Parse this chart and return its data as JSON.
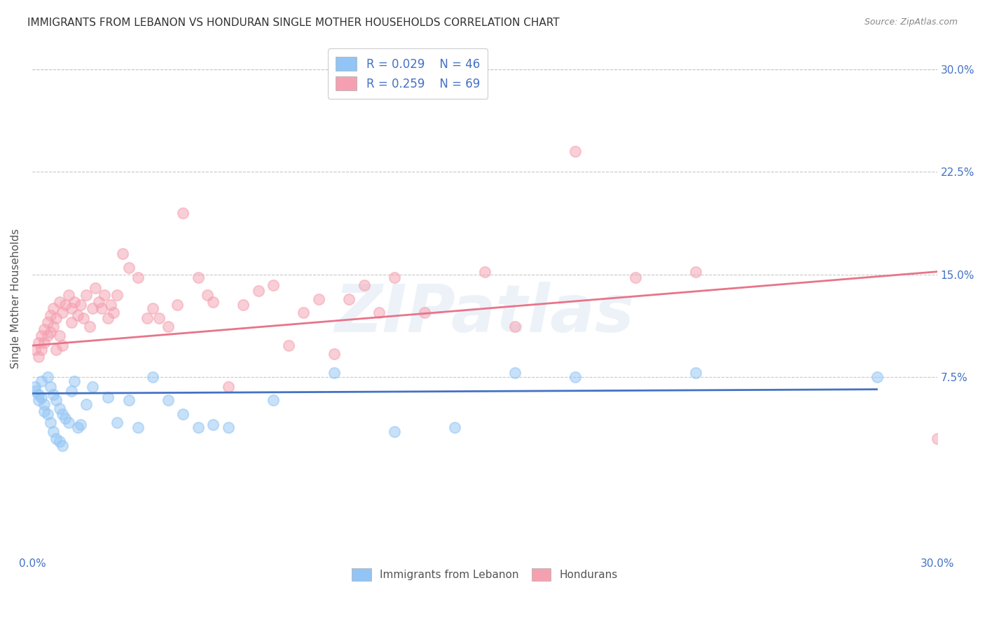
{
  "title": "IMMIGRANTS FROM LEBANON VS HONDURAN SINGLE MOTHER HOUSEHOLDS CORRELATION CHART",
  "source": "Source: ZipAtlas.com",
  "ylabel": "Single Mother Households",
  "legend_R_blue": "R = 0.029",
  "legend_N_blue": "N = 46",
  "legend_R_pink": "R = 0.259",
  "legend_N_pink": "N = 69",
  "legend_label_blue": "Immigrants from Lebanon",
  "legend_label_pink": "Hondurans",
  "blue_color": "#92C5F5",
  "pink_color": "#F5A0B0",
  "blue_line_color": "#4472C4",
  "pink_line_color": "#E8748A",
  "blue_scatter": [
    [
      0.001,
      0.068
    ],
    [
      0.001,
      0.065
    ],
    [
      0.002,
      0.062
    ],
    [
      0.002,
      0.058
    ],
    [
      0.003,
      0.072
    ],
    [
      0.003,
      0.06
    ],
    [
      0.004,
      0.055
    ],
    [
      0.004,
      0.05
    ],
    [
      0.005,
      0.075
    ],
    [
      0.005,
      0.048
    ],
    [
      0.006,
      0.068
    ],
    [
      0.006,
      0.042
    ],
    [
      0.007,
      0.062
    ],
    [
      0.007,
      0.035
    ],
    [
      0.008,
      0.058
    ],
    [
      0.008,
      0.03
    ],
    [
      0.009,
      0.052
    ],
    [
      0.009,
      0.028
    ],
    [
      0.01,
      0.048
    ],
    [
      0.01,
      0.025
    ],
    [
      0.011,
      0.045
    ],
    [
      0.012,
      0.042
    ],
    [
      0.013,
      0.065
    ],
    [
      0.014,
      0.072
    ],
    [
      0.015,
      0.038
    ],
    [
      0.016,
      0.04
    ],
    [
      0.018,
      0.055
    ],
    [
      0.02,
      0.068
    ],
    [
      0.025,
      0.06
    ],
    [
      0.028,
      0.042
    ],
    [
      0.032,
      0.058
    ],
    [
      0.035,
      0.038
    ],
    [
      0.04,
      0.075
    ],
    [
      0.045,
      0.058
    ],
    [
      0.05,
      0.048
    ],
    [
      0.055,
      0.038
    ],
    [
      0.06,
      0.04
    ],
    [
      0.065,
      0.038
    ],
    [
      0.08,
      0.058
    ],
    [
      0.1,
      0.078
    ],
    [
      0.12,
      0.035
    ],
    [
      0.14,
      0.038
    ],
    [
      0.16,
      0.078
    ],
    [
      0.18,
      0.075
    ],
    [
      0.22,
      0.078
    ],
    [
      0.28,
      0.075
    ]
  ],
  "pink_scatter": [
    [
      0.001,
      0.095
    ],
    [
      0.002,
      0.1
    ],
    [
      0.002,
      0.09
    ],
    [
      0.003,
      0.105
    ],
    [
      0.003,
      0.095
    ],
    [
      0.004,
      0.11
    ],
    [
      0.004,
      0.1
    ],
    [
      0.005,
      0.115
    ],
    [
      0.005,
      0.105
    ],
    [
      0.006,
      0.12
    ],
    [
      0.006,
      0.108
    ],
    [
      0.007,
      0.125
    ],
    [
      0.007,
      0.112
    ],
    [
      0.008,
      0.118
    ],
    [
      0.008,
      0.095
    ],
    [
      0.009,
      0.13
    ],
    [
      0.009,
      0.105
    ],
    [
      0.01,
      0.122
    ],
    [
      0.01,
      0.098
    ],
    [
      0.011,
      0.128
    ],
    [
      0.012,
      0.135
    ],
    [
      0.013,
      0.125
    ],
    [
      0.013,
      0.115
    ],
    [
      0.014,
      0.13
    ],
    [
      0.015,
      0.12
    ],
    [
      0.016,
      0.128
    ],
    [
      0.017,
      0.118
    ],
    [
      0.018,
      0.135
    ],
    [
      0.019,
      0.112
    ],
    [
      0.02,
      0.125
    ],
    [
      0.021,
      0.14
    ],
    [
      0.022,
      0.13
    ],
    [
      0.023,
      0.125
    ],
    [
      0.024,
      0.135
    ],
    [
      0.025,
      0.118
    ],
    [
      0.026,
      0.128
    ],
    [
      0.027,
      0.122
    ],
    [
      0.028,
      0.135
    ],
    [
      0.03,
      0.165
    ],
    [
      0.032,
      0.155
    ],
    [
      0.035,
      0.148
    ],
    [
      0.038,
      0.118
    ],
    [
      0.04,
      0.125
    ],
    [
      0.042,
      0.118
    ],
    [
      0.045,
      0.112
    ],
    [
      0.048,
      0.128
    ],
    [
      0.05,
      0.195
    ],
    [
      0.055,
      0.148
    ],
    [
      0.058,
      0.135
    ],
    [
      0.06,
      0.13
    ],
    [
      0.065,
      0.068
    ],
    [
      0.07,
      0.128
    ],
    [
      0.075,
      0.138
    ],
    [
      0.08,
      0.142
    ],
    [
      0.085,
      0.098
    ],
    [
      0.09,
      0.122
    ],
    [
      0.095,
      0.132
    ],
    [
      0.1,
      0.092
    ],
    [
      0.105,
      0.132
    ],
    [
      0.11,
      0.142
    ],
    [
      0.115,
      0.122
    ],
    [
      0.12,
      0.148
    ],
    [
      0.13,
      0.122
    ],
    [
      0.15,
      0.152
    ],
    [
      0.16,
      0.112
    ],
    [
      0.18,
      0.24
    ],
    [
      0.2,
      0.148
    ],
    [
      0.22,
      0.152
    ],
    [
      0.3,
      0.03
    ]
  ],
  "blue_line_x": [
    0.0,
    0.28
  ],
  "blue_line_y": [
    0.063,
    0.066
  ],
  "pink_line_x": [
    0.0,
    0.3
  ],
  "pink_line_y": [
    0.098,
    0.152
  ],
  "ytick_values": [
    0.075,
    0.15,
    0.225,
    0.3
  ],
  "ytick_labels": [
    "7.5%",
    "15.0%",
    "22.5%",
    "30.0%"
  ],
  "xlim": [
    0.0,
    0.3
  ],
  "ylim": [
    -0.055,
    0.32
  ],
  "watermark_text": "ZIPatlas",
  "bg_color": "#FFFFFF",
  "grid_color": "#C8C8C8",
  "title_color": "#333333",
  "axis_label_color": "#4472C4",
  "legend_text_color": "#4472C4",
  "ylabel_color": "#555555"
}
